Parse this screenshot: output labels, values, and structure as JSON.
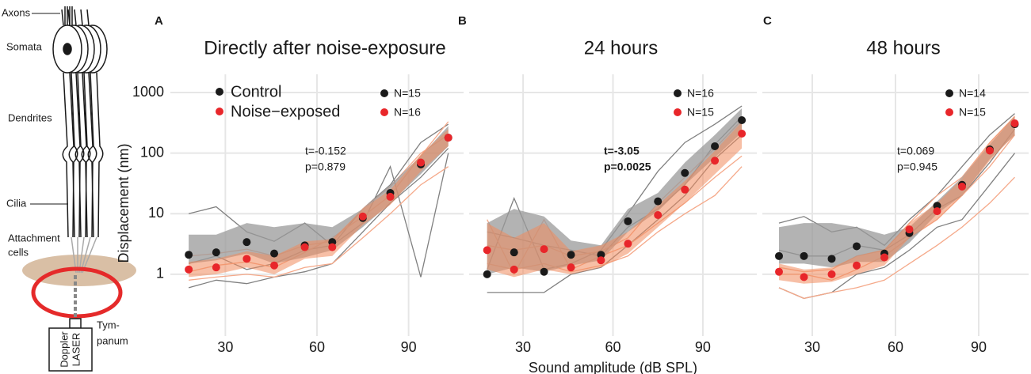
{
  "schematic": {
    "axons": "Axons",
    "somata": "Somata",
    "dendrites": "Dendrites",
    "cilia": "Cilia",
    "attachment": [
      "Attachment",
      "cells"
    ],
    "tympanum": [
      "Tym-",
      "panum"
    ],
    "laser": [
      "Doppler",
      "LASER"
    ]
  },
  "chart_data": [
    {
      "type": "line",
      "panel": "A",
      "title": "Directly after noise-exposure",
      "ylabel": "Displacement (nm)",
      "legend": true,
      "ytick_labels": true,
      "x": [
        18,
        27,
        37,
        46,
        56,
        65,
        75,
        84,
        94,
        103
      ],
      "xlim": [
        12,
        108
      ],
      "xticks": [
        30,
        60,
        90
      ],
      "ylim": [
        0.15,
        2000
      ],
      "log_y": true,
      "yticks": [
        1,
        10,
        100,
        1000
      ],
      "grid": true,
      "stats": [
        "t=-0.152",
        "p=0.879"
      ],
      "stats_bold": false,
      "series": [
        {
          "name": "Control",
          "color": "#1a1a1a",
          "band_color": "#9a9a9a",
          "trace_color": "#808080",
          "n_label": "N=15",
          "values": [
            2.1,
            2.3,
            3.4,
            2.2,
            3.0,
            3.4,
            8.5,
            22,
            65,
            180
          ],
          "lower": [
            1.5,
            1.7,
            2.2,
            1.5,
            1.9,
            2.5,
            6,
            15,
            45,
            130
          ],
          "upper": [
            4.5,
            4.5,
            7,
            6,
            7,
            6,
            12,
            30,
            90,
            280
          ],
          "traces": [
            [
              10,
              13,
              5,
              3.5,
              7,
              3,
              12,
              30,
              150,
              300
            ],
            [
              1.5,
              2,
              1.2,
              1.5,
              2.5,
              3,
              7,
              60,
              0.9,
              100
            ],
            [
              0.6,
              0.8,
              0.7,
              0.9,
              1.1,
              1.5,
              5,
              15,
              40,
              120
            ]
          ]
        },
        {
          "name": "Noise−exposed",
          "color": "#e8262a",
          "band_color": "#f08a5d",
          "trace_color": "#f5a98a",
          "n_label": "N=16",
          "values": [
            1.2,
            1.3,
            1.8,
            1.4,
            2.8,
            2.8,
            9,
            19,
            70,
            180
          ],
          "lower": [
            0.9,
            1,
            1.3,
            1,
            1.8,
            2,
            6.5,
            14,
            50,
            130
          ],
          "upper": [
            1.6,
            1.8,
            2.4,
            2,
            3.5,
            3.8,
            12,
            25,
            95,
            250
          ],
          "traces": [
            [
              1.1,
              1.4,
              1.6,
              1.3,
              2.3,
              4,
              9,
              20,
              90,
              330
            ],
            [
              0.8,
              0.9,
              1,
              0.9,
              1.3,
              1.5,
              4,
              10,
              30,
              60
            ],
            [
              2,
              2.2,
              2.6,
              2,
              3,
              3.5,
              12,
              28,
              100,
              200
            ]
          ]
        }
      ]
    },
    {
      "type": "line",
      "panel": "B",
      "title": "24 hours",
      "xlabel": "Sound amplitude (dB SPL)",
      "legend": false,
      "ytick_labels": false,
      "x": [
        18,
        27,
        37,
        46,
        56,
        65,
        75,
        84,
        94,
        103
      ],
      "xlim": [
        12,
        108
      ],
      "xticks": [
        30,
        60,
        90
      ],
      "ylim": [
        0.15,
        2000
      ],
      "log_y": true,
      "yticks": [
        1,
        10,
        100,
        1000
      ],
      "grid": true,
      "stats": [
        "t=-3.05",
        "p=0.0025"
      ],
      "stats_bold": true,
      "series": [
        {
          "color": "#1a1a1a",
          "band_color": "#9a9a9a",
          "trace_color": "#808080",
          "n_label": "N=16",
          "values": [
            1.0,
            2.3,
            1.1,
            2.1,
            2.1,
            7.5,
            16,
            47,
            130,
            350
          ],
          "lower": [
            1,
            1.3,
            1.1,
            1.4,
            1.7,
            5,
            11,
            30,
            85,
            220
          ],
          "upper": [
            7,
            12,
            9,
            3.6,
            3,
            12,
            22,
            70,
            200,
            550
          ],
          "traces": [
            [
              1.2,
              18,
              1.2,
              1.5,
              2.5,
              10,
              50,
              150,
              300,
              600
            ],
            [
              0.5,
              0.5,
              0.5,
              1,
              1.3,
              3,
              8,
              20,
              80,
              200
            ],
            [
              5,
              4,
              3,
              2.5,
              2,
              6,
              12,
              30,
              140,
              400
            ]
          ]
        },
        {
          "color": "#e8262a",
          "band_color": "#f08a5d",
          "trace_color": "#f5a98a",
          "n_label": "N=15",
          "values": [
            2.5,
            1.2,
            2.6,
            1.3,
            1.7,
            3.2,
            9.5,
            25,
            75,
            210
          ],
          "lower": [
            1.2,
            0.9,
            1.2,
            1,
            1.3,
            2.2,
            6,
            15,
            45,
            120
          ],
          "upper": [
            7,
            4,
            7,
            2.4,
            3,
            5,
            14,
            35,
            110,
            330
          ],
          "traces": [
            [
              8,
              1,
              8,
              1.2,
              2,
              3,
              7,
              15,
              40,
              90
            ],
            [
              1.5,
              1.2,
              1.5,
              1.1,
              1.4,
              2,
              5,
              10,
              20,
              60
            ],
            [
              3,
              2.5,
              3,
              2,
              2.4,
              4,
              15,
              40,
              120,
              350
            ]
          ]
        }
      ]
    },
    {
      "type": "line",
      "panel": "C",
      "title": "48 hours",
      "legend": false,
      "ytick_labels": false,
      "x": [
        18,
        27,
        37,
        46,
        56,
        65,
        75,
        84,
        94,
        103
      ],
      "xlim": [
        12,
        108
      ],
      "xticks": [
        30,
        60,
        90
      ],
      "ylim": [
        0.15,
        2000
      ],
      "log_y": true,
      "yticks": [
        1,
        10,
        100,
        1000
      ],
      "grid": true,
      "stats": [
        "t=0.069",
        "p=0.945"
      ],
      "stats_bold": false,
      "series": [
        {
          "color": "#1a1a1a",
          "band_color": "#9a9a9a",
          "trace_color": "#808080",
          "n_label": "N=14",
          "values": [
            2.0,
            2.0,
            1.8,
            2.9,
            2.2,
            4.8,
            13.5,
            30,
            115,
            300
          ],
          "lower": [
            1.5,
            1.5,
            1.3,
            1.6,
            1.6,
            3.3,
            10,
            20,
            80,
            200
          ],
          "upper": [
            6,
            7,
            7,
            6,
            4.5,
            6,
            16,
            40,
            140,
            400
          ],
          "traces": [
            [
              7,
              9,
              5,
              6,
              3,
              8,
              20,
              60,
              200,
              450
            ],
            [
              0.6,
              0.4,
              0.5,
              1,
              1.3,
              2.5,
              6,
              8,
              30,
              100
            ],
            [
              2.5,
              2,
              2,
              3,
              2.5,
              4.5,
              12,
              20,
              70,
              250
            ]
          ]
        },
        {
          "color": "#e8262a",
          "band_color": "#f08a5d",
          "trace_color": "#f5a98a",
          "n_label": "N=15",
          "values": [
            1.1,
            0.9,
            1.0,
            1.4,
            1.9,
            5.5,
            11,
            28,
            110,
            310
          ],
          "lower": [
            0.8,
            0.7,
            0.75,
            1,
            1.4,
            4,
            8,
            20,
            75,
            200
          ],
          "upper": [
            1.5,
            1.2,
            1.3,
            2,
            2.6,
            7,
            15,
            38,
            150,
            420
          ],
          "traces": [
            [
              0.6,
              0.4,
              0.5,
              0.6,
              0.8,
              1.5,
              3,
              6,
              15,
              40
            ],
            [
              1.3,
              1.1,
              1.2,
              2,
              2.5,
              7,
              20,
              40,
              150,
              400
            ],
            [
              1,
              1,
              0.8,
              1.2,
              2,
              4,
              8,
              20,
              60,
              200
            ]
          ]
        }
      ]
    }
  ]
}
